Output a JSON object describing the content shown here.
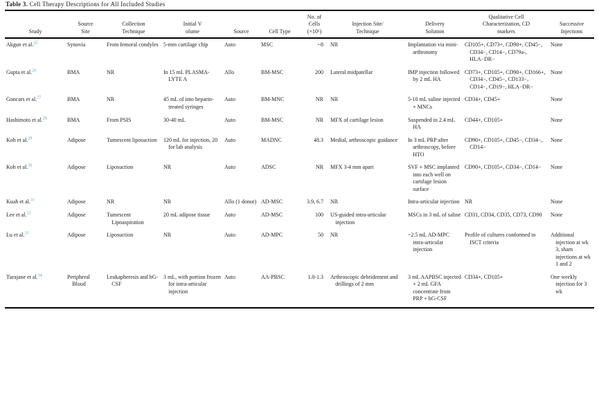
{
  "colors": {
    "rule": "#000000",
    "citation_link": "#4fa3cf",
    "text": "#1c1c1c"
  },
  "table": {
    "title_bold": "Table 3.",
    "title_rest": " Cell Therapy Descriptions for All Included Studies",
    "columns": [
      {
        "key": "study",
        "label": "Study"
      },
      {
        "key": "source_site",
        "label": "Source\nSite"
      },
      {
        "key": "collection",
        "label": "Collection\nTechnique"
      },
      {
        "key": "initial_volume",
        "label": "Initial V\nolume"
      },
      {
        "key": "source",
        "label": "Source"
      },
      {
        "key": "cell_type",
        "label": "Cell Type"
      },
      {
        "key": "no_cells",
        "label": "No. of\nCells\n(×10⁶)"
      },
      {
        "key": "injection_site",
        "label": "Injection Site/\nTechnique"
      },
      {
        "key": "delivery",
        "label": "Delivery\nSolution"
      },
      {
        "key": "qualitative",
        "label": "Qualitative Cell\nCharacterization, CD\nmarkers"
      },
      {
        "key": "successive",
        "label": "Successive\nInjections"
      }
    ],
    "rows": [
      {
        "study": {
          "name": "Akgun et al.",
          "ref": "25"
        },
        "source_site": "Synovia",
        "collection": "From femoral condyles",
        "initial_volume": "5-mm cartilage chip",
        "source": "Auto",
        "cell_type": "MSC",
        "no_cells": "~8",
        "injection_site": "NR",
        "delivery": "Implantation via mini-arthrotomy",
        "qualitative": "CD105+, CD73+, CD90+, CD45−, CD34−, CD14−, CD79a-, HLA−DR−",
        "successive": "None"
      },
      {
        "study": {
          "name": "Gupta et al.",
          "ref": "26"
        },
        "source_site": "BMA",
        "collection": "NR",
        "initial_volume": "In 15 mL PLASMA-LYTE A",
        "source": "Allo",
        "cell_type": "BM-MSC",
        "no_cells": "200",
        "injection_site": "Lateral midpatellar",
        "delivery": "IMP injection followed by 2 mL HA",
        "qualitative": "CD73+, CD105+, CD90+, CD166+, CD34−, CD45−, CD133−, CD14−, CD19−, HLA−DR−",
        "successive": "None"
      },
      {
        "study": {
          "name": "Goncars et al.",
          "ref": "27"
        },
        "source_site": "BMA",
        "collection": "NR",
        "initial_volume": "45 mL of into heparin-treated syringes",
        "source": "Auto",
        "cell_type": "BM-MNC",
        "no_cells": "NR",
        "injection_site": "NR",
        "delivery": "5-10 mL saline injected + MNCs",
        "qualitative": "CD34+, CD45+",
        "successive": "None"
      },
      {
        "study": {
          "name": "Hashimoto et al.",
          "ref": "28"
        },
        "source_site": "BMA",
        "collection": "From PSIS",
        "initial_volume": "30-40 mL",
        "source": "Auto",
        "cell_type": "BM-MSC",
        "no_cells": "NR",
        "injection_site": "MFX of cartilage lesion",
        "delivery": "Suspended in 2.4 mL HA",
        "qualitative": "CD44+, CD105+",
        "successive": "None"
      },
      {
        "study": {
          "name": "Koh et al.",
          "ref": "29"
        },
        "source_site": "Adipose",
        "collection": "Tumescent liposuction",
        "initial_volume": "120 mL for injection, 20 for lab analysis",
        "source": "Auto",
        "cell_type": "MADNC",
        "no_cells": "48.3",
        "injection_site": "Medial, arthroscopic guidance",
        "delivery": "In 3 mL PRP after arthroscopy, before HTO",
        "qualitative": "CD90+, CD105+, CD45−, CD34−, CD14−",
        "successive": "None"
      },
      {
        "study": {
          "name": "Koh et al.",
          "ref": "30"
        },
        "source_site": "Adipose",
        "collection": "Liposuction",
        "initial_volume": "NR",
        "source": "Auto",
        "cell_type": "ADSC",
        "no_cells": "NR",
        "injection_site": "MFX 3-4 mm apart",
        "delivery": "SVF + MSC implanted into each well on cartilage lesion surface",
        "qualitative": "CD90+, CD105+, CD34−, CD14−",
        "successive": "None"
      },
      {
        "study": {
          "name": "Kuah et al.",
          "ref": "31"
        },
        "source_site": "Adipose",
        "collection": "NR",
        "initial_volume": "NR",
        "source": "Allo (1 donor)",
        "cell_type": "AD-MSC",
        "no_cells": "3.9, 6.7",
        "injection_site": "NR",
        "delivery": "Intra-articular injection",
        "qualitative": "NR",
        "successive": "None"
      },
      {
        "study": {
          "name": "Lee et al.",
          "ref": "32"
        },
        "source_site": "Adipose",
        "collection": "Tumescent Lipoaspiration",
        "initial_volume": "20 mL adipose tissue",
        "source": "Auto",
        "cell_type": "AD-MSC",
        "no_cells": "100",
        "injection_site": "US-guided intra-articular injection",
        "delivery": "MSCs in 3 mL of saline",
        "qualitative": "CD31, CD34, CD35, CD73, CD90",
        "successive": "None"
      },
      {
        "study": {
          "name": "Lu et al.",
          "ref": "33"
        },
        "source_site": "Adipose",
        "collection": "Liposuction",
        "initial_volume": "NR",
        "source": "Auto",
        "cell_type": "AD-MPC",
        "no_cells": "50",
        "injection_site": "NR",
        "delivery": "~2.5 mL AD-MPC intra-articular injection",
        "qualitative": "Profile of cultures conformed to ISCT criteria",
        "successive": "Additional injection at wk 3, sham injections at wk 1 and 2"
      },
      {
        "study": {
          "name": "Turajane et al.",
          "ref": "34"
        },
        "source_site": "Peripheral Blood",
        "collection": "Leukapheresis and hG-CSF",
        "initial_volume": "3 mL, with portion frozen for intra-articular injection",
        "source": "Auto",
        "cell_type": "AA-PBSC",
        "no_cells": "1.0-1.3",
        "injection_site": "Arthroscopic debridement and drillings of 2 mm",
        "delivery": "3 mL AAPBSC injected + 2 mL GFA concentrate from PRP + hG-CSF",
        "qualitative": "CD34+, CD105+",
        "successive": "One weekly injection for 3 wk"
      }
    ]
  }
}
